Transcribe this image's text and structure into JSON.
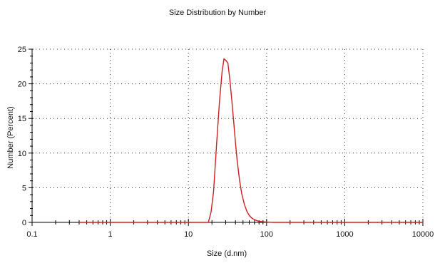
{
  "chart_data": {
    "type": "line",
    "title": "Size Distribution by Number",
    "xlabel": "Size (d.nm)",
    "ylabel": "Number (Percent)",
    "xscale": "log",
    "xlim": [
      0.1,
      10000
    ],
    "ylim": [
      0,
      25
    ],
    "grid": true,
    "legend": "none",
    "x_ticks": [
      "0.1",
      "1",
      "10",
      "100",
      "1000",
      "10000"
    ],
    "y_ticks": [
      "0",
      "5",
      "10",
      "15",
      "20",
      "25"
    ],
    "colors": {
      "series": "#cc2020",
      "axis": "#000000",
      "grid": "#333333"
    },
    "series": [
      {
        "x": [
          0.4,
          1,
          10,
          18,
          19.5,
          21,
          23,
          25,
          27,
          28.5,
          30,
          32,
          34,
          36,
          38,
          40,
          42,
          45,
          48,
          52,
          56,
          60,
          65,
          70,
          75,
          80,
          90,
          100,
          110,
          120,
          150,
          300,
          1000,
          10000
        ],
        "y": [
          0,
          0,
          0,
          0,
          1.5,
          4.5,
          11.5,
          17.5,
          21.8,
          23.6,
          23.4,
          23.0,
          20.5,
          17.5,
          14.5,
          11.5,
          9.0,
          6.2,
          4.2,
          2.6,
          1.6,
          1.0,
          0.6,
          0.4,
          0.25,
          0.15,
          0.1,
          0.05,
          0.02,
          0,
          0,
          0,
          0,
          0
        ]
      }
    ]
  }
}
